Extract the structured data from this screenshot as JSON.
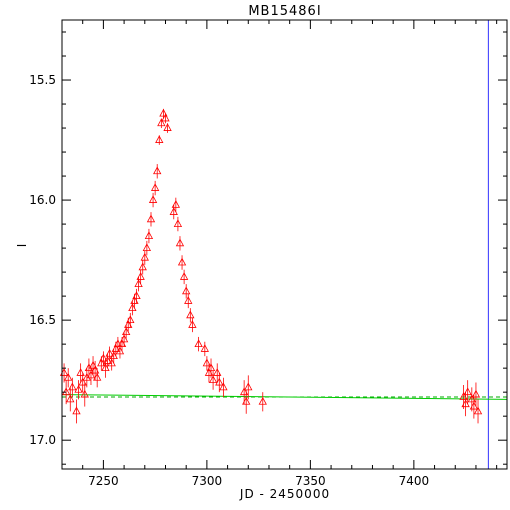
{
  "chart_data": {
    "type": "scatter",
    "title": "MB15486I",
    "xlabel": "JD - 2450000",
    "ylabel": "I",
    "xlim": [
      7230,
      7445
    ],
    "ylim": [
      17.12,
      15.25
    ],
    "y_inverted": true,
    "grid": false,
    "legend": "none",
    "xticks": [
      7250,
      7300,
      7350,
      7400
    ],
    "yticks": [
      15.5,
      16.0,
      16.5,
      17.0
    ],
    "x_minor_step": 10,
    "y_minor_step": 0.1,
    "colors": {
      "data": "#ff0000",
      "model": "#00cc00",
      "baseline": "#00aa00",
      "marker_line": "#3333ff",
      "axes": "#000000"
    },
    "vertical_marker_x": 7436,
    "series": [
      {
        "marker": "triangle-with-errorbar",
        "points": [
          [
            7231,
            16.72,
            0.04
          ],
          [
            7232,
            16.8,
            0.05
          ],
          [
            7233,
            16.74,
            0.04
          ],
          [
            7234,
            16.83,
            0.05
          ],
          [
            7235,
            16.78,
            0.04
          ],
          [
            7237,
            16.88,
            0.05
          ],
          [
            7238,
            16.79,
            0.04
          ],
          [
            7239,
            16.72,
            0.04
          ],
          [
            7240,
            16.76,
            0.04
          ],
          [
            7241,
            16.81,
            0.05
          ],
          [
            7242,
            16.74,
            0.04
          ],
          [
            7243,
            16.7,
            0.04
          ],
          [
            7244,
            16.73,
            0.04
          ],
          [
            7245,
            16.69,
            0.04
          ],
          [
            7246,
            16.71,
            0.04
          ],
          [
            7247,
            16.74,
            0.04
          ],
          [
            7249,
            16.68,
            0.03
          ],
          [
            7250,
            16.66,
            0.03
          ],
          [
            7251,
            16.7,
            0.04
          ],
          [
            7252,
            16.67,
            0.03
          ],
          [
            7253,
            16.64,
            0.03
          ],
          [
            7254,
            16.68,
            0.03
          ],
          [
            7255,
            16.65,
            0.03
          ],
          [
            7256,
            16.62,
            0.03
          ],
          [
            7257,
            16.6,
            0.03
          ],
          [
            7258,
            16.63,
            0.03
          ],
          [
            7259,
            16.6,
            0.03
          ],
          [
            7260,
            16.58,
            0.03
          ],
          [
            7261,
            16.55,
            0.03
          ],
          [
            7262,
            16.52,
            0.03
          ],
          [
            7263,
            16.5,
            0.03
          ],
          [
            7264,
            16.45,
            0.03
          ],
          [
            7265,
            16.42,
            0.03
          ],
          [
            7266,
            16.4,
            0.03
          ],
          [
            7267,
            16.35,
            0.03
          ],
          [
            7268,
            16.32,
            0.03
          ],
          [
            7269,
            16.28,
            0.03
          ],
          [
            7270,
            16.24,
            0.03
          ],
          [
            7271,
            16.2,
            0.03
          ],
          [
            7272,
            16.15,
            0.03
          ],
          [
            7273,
            16.08,
            0.03
          ],
          [
            7274,
            16.0,
            0.03
          ],
          [
            7275,
            15.95,
            0.03
          ],
          [
            7276,
            15.88,
            0.03
          ],
          [
            7277,
            15.75,
            0.02
          ],
          [
            7278,
            15.68,
            0.02
          ],
          [
            7279,
            15.64,
            0.02
          ],
          [
            7280,
            15.66,
            0.02
          ],
          [
            7281,
            15.7,
            0.02
          ],
          [
            7284,
            16.05,
            0.03
          ],
          [
            7285,
            16.02,
            0.03
          ],
          [
            7286,
            16.1,
            0.03
          ],
          [
            7287,
            16.18,
            0.03
          ],
          [
            7288,
            16.26,
            0.03
          ],
          [
            7289,
            16.32,
            0.03
          ],
          [
            7290,
            16.38,
            0.03
          ],
          [
            7291,
            16.42,
            0.03
          ],
          [
            7292,
            16.48,
            0.03
          ],
          [
            7293,
            16.52,
            0.03
          ],
          [
            7296,
            16.6,
            0.03
          ],
          [
            7299,
            16.62,
            0.03
          ],
          [
            7300,
            16.68,
            0.03
          ],
          [
            7301,
            16.72,
            0.04
          ],
          [
            7302,
            16.7,
            0.04
          ],
          [
            7303,
            16.75,
            0.04
          ],
          [
            7305,
            16.72,
            0.04
          ],
          [
            7306,
            16.76,
            0.04
          ],
          [
            7308,
            16.78,
            0.04
          ],
          [
            7318,
            16.8,
            0.05
          ],
          [
            7319,
            16.84,
            0.05
          ],
          [
            7320,
            16.78,
            0.05
          ],
          [
            7327,
            16.84,
            0.04
          ],
          [
            7424,
            16.82,
            0.05
          ],
          [
            7425,
            16.85,
            0.05
          ],
          [
            7426,
            16.8,
            0.05
          ],
          [
            7428,
            16.83,
            0.05
          ],
          [
            7429,
            16.86,
            0.05
          ],
          [
            7430,
            16.81,
            0.05
          ],
          [
            7431,
            16.88,
            0.05
          ]
        ]
      }
    ],
    "model_line": {
      "x": [
        7230,
        7445
      ],
      "y": [
        16.81,
        16.83
      ]
    },
    "baseline_line": {
      "x": [
        7230,
        7445
      ],
      "y": [
        16.82,
        16.82
      ]
    }
  }
}
